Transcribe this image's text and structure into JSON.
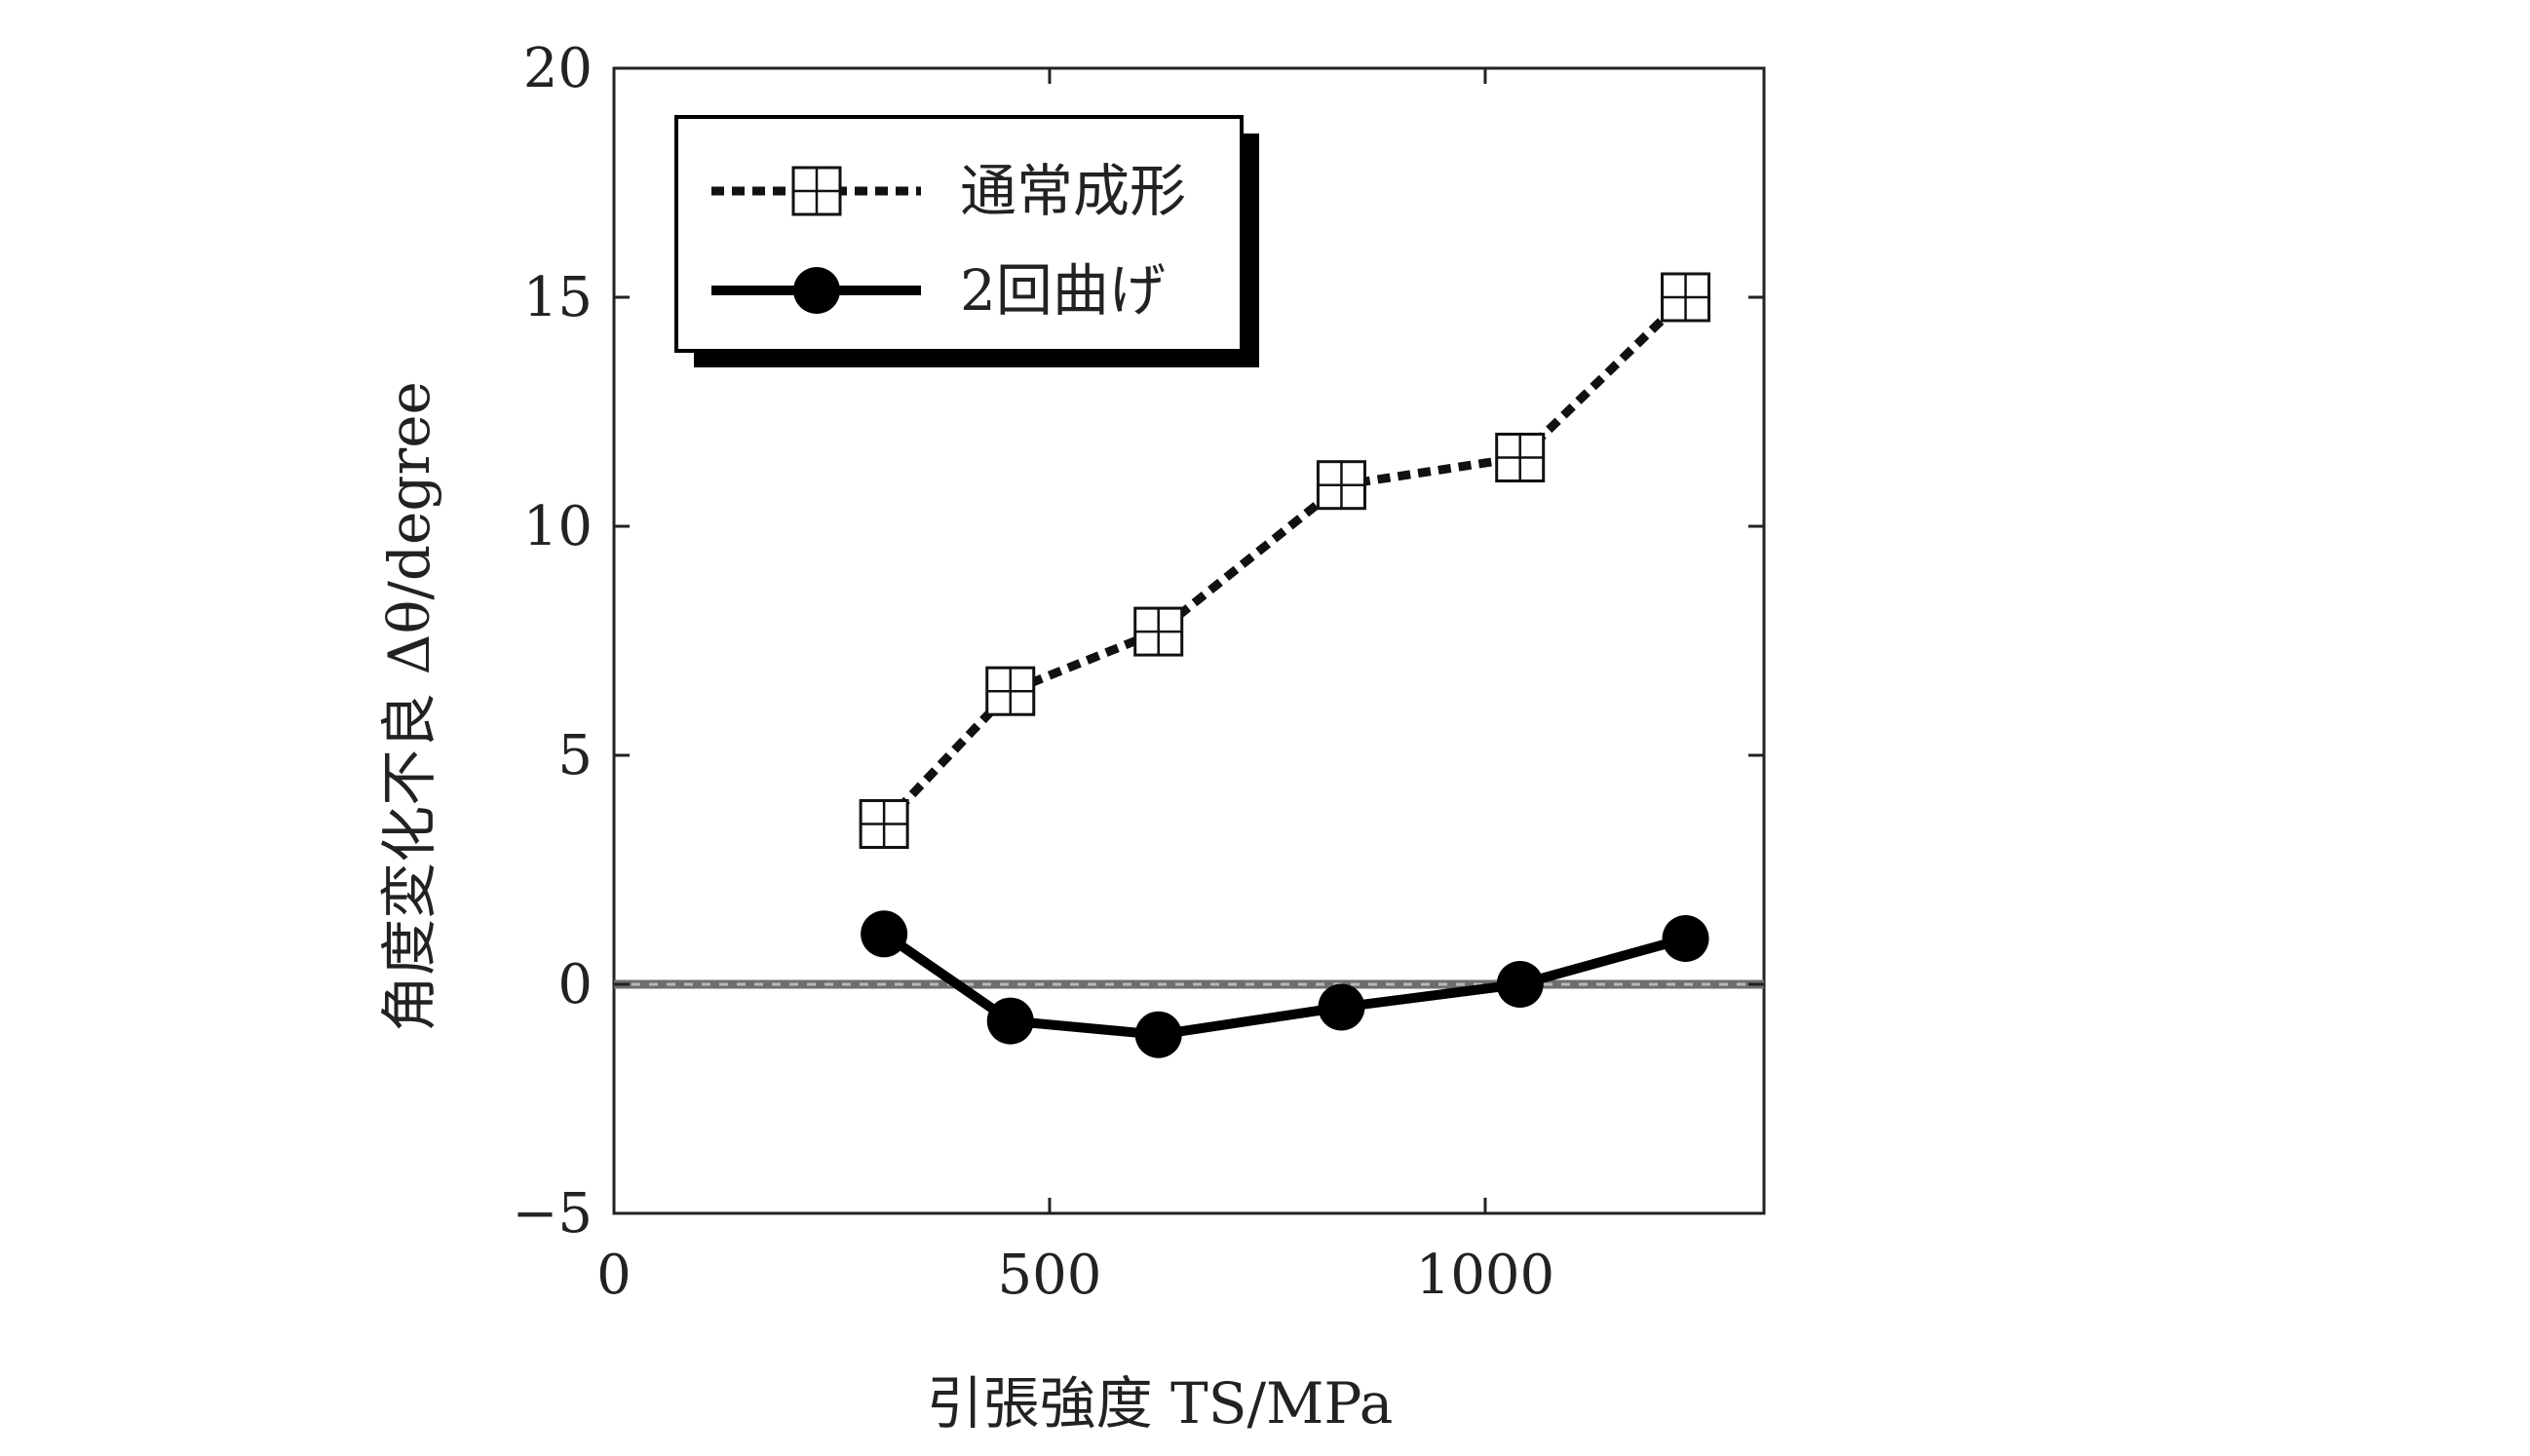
{
  "chart_data": {
    "type": "line",
    "title": "",
    "xlabel": "引張強度 TS/MPa",
    "ylabel": "角度変化不良 Δθ/degree",
    "xlim": [
      0,
      1320
    ],
    "ylim": [
      -5,
      20
    ],
    "xticks": [
      0,
      500,
      1000
    ],
    "yticks": [
      -5,
      0,
      5,
      10,
      15,
      20
    ],
    "grid": false,
    "legend_position": "top-left",
    "reference_line": {
      "y": 0,
      "style": "dashed-gray"
    },
    "series": [
      {
        "name": "通常成形",
        "marker": "boxed-cross-square",
        "line": "dotted",
        "color": "#111111",
        "x": [
          310,
          455,
          625,
          835,
          1040,
          1230
        ],
        "y": [
          3.5,
          6.4,
          7.7,
          10.9,
          11.5,
          15.0
        ]
      },
      {
        "name": "2回曲げ",
        "marker": "filled-circle",
        "line": "solid",
        "color": "#000000",
        "x": [
          310,
          455,
          625,
          835,
          1040,
          1230
        ],
        "y": [
          1.1,
          -0.8,
          -1.1,
          -0.5,
          0.0,
          1.0
        ]
      }
    ]
  }
}
